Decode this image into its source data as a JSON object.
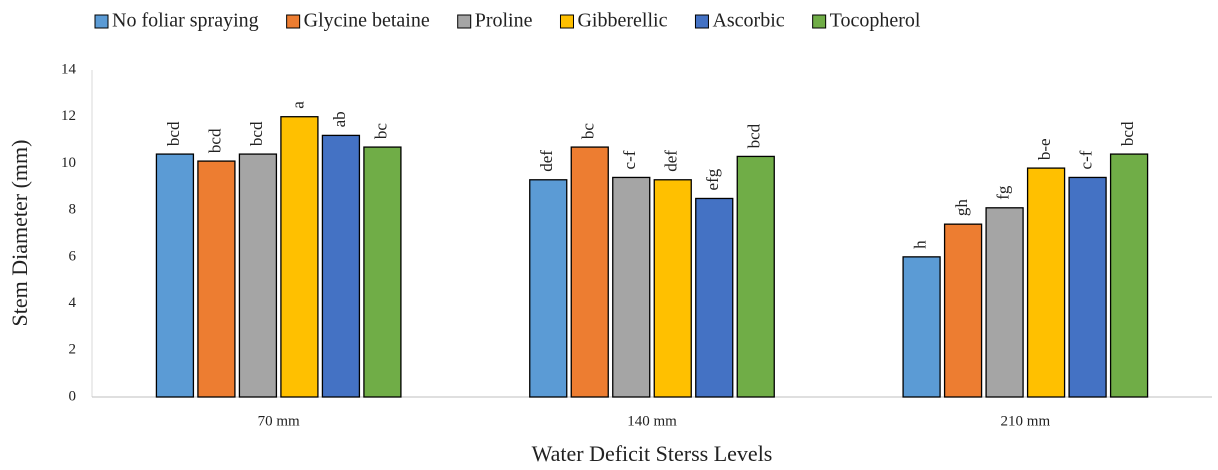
{
  "chart_data": {
    "type": "bar",
    "xlabel": "Water Deficit  Sterss Levels",
    "ylabel": "Stem Diameter (mm)",
    "categories": [
      "70 mm",
      "140 mm",
      "210 mm"
    ],
    "series": [
      {
        "name": "No foliar spraying",
        "color": "#5b9bd5",
        "values": [
          10.4,
          9.3,
          6.0
        ],
        "letters": [
          "bcd",
          "def",
          "h"
        ]
      },
      {
        "name": "Glycine betaine",
        "color": "#ed7d31",
        "values": [
          10.1,
          10.7,
          7.4
        ],
        "letters": [
          "bcd",
          "bc",
          "gh"
        ]
      },
      {
        "name": "Proline",
        "color": "#a5a5a5",
        "values": [
          10.4,
          9.4,
          8.1
        ],
        "letters": [
          "bcd",
          "c-f",
          "fg"
        ]
      },
      {
        "name": "Gibberellic",
        "color": "#ffc000",
        "values": [
          12.0,
          9.3,
          9.8
        ],
        "letters": [
          "a",
          "def",
          "b-e"
        ]
      },
      {
        "name": "Ascorbic",
        "color": "#4472c4",
        "values": [
          11.2,
          8.5,
          9.4
        ],
        "letters": [
          "ab",
          "efg",
          "c-f"
        ]
      },
      {
        "name": "Tocopherol",
        "color": "#70ad47",
        "values": [
          10.7,
          10.3,
          10.4
        ],
        "letters": [
          "bc",
          "bcd",
          "bcd"
        ]
      }
    ],
    "ylim": [
      0,
      14
    ],
    "yticks": [
      0,
      2,
      4,
      6,
      8,
      10,
      12,
      14
    ],
    "grid": false,
    "legend": "top"
  }
}
